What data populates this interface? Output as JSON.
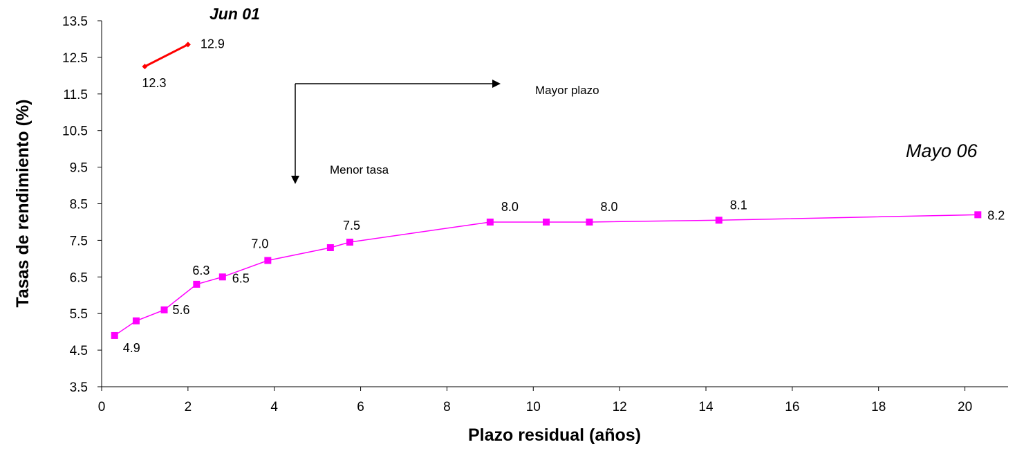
{
  "chart_data": {
    "type": "line",
    "xlabel": "Plazo residual (años)",
    "ylabel": "Tasas de rendimiento (%)",
    "xlim": [
      0,
      21
    ],
    "ylim": [
      3.5,
      13.5
    ],
    "x_ticks": [
      "0",
      "2",
      "4",
      "6",
      "8",
      "10",
      "12",
      "14",
      "16",
      "18",
      "20"
    ],
    "y_ticks": [
      "3.5",
      "4.5",
      "5.5",
      "6.5",
      "7.5",
      "8.5",
      "9.5",
      "10.5",
      "11.5",
      "12.5",
      "13.5"
    ],
    "grid": false,
    "series": [
      {
        "name": "Jun 01",
        "color": "#ff0000",
        "marker": "diamond",
        "points": [
          {
            "x": 1.0,
            "y": 12.25,
            "label": "12.3"
          },
          {
            "x": 2.0,
            "y": 12.85,
            "label": "12.9"
          }
        ]
      },
      {
        "name": "Mayo 06",
        "color": "#ff00ff",
        "marker": "square",
        "points": [
          {
            "x": 0.3,
            "y": 4.9,
            "label": "4.9"
          },
          {
            "x": 0.8,
            "y": 5.3,
            "label": ""
          },
          {
            "x": 1.45,
            "y": 5.6,
            "label": "5.6"
          },
          {
            "x": 2.2,
            "y": 6.3,
            "label": "6.3"
          },
          {
            "x": 2.8,
            "y": 6.5,
            "label": "6.5"
          },
          {
            "x": 3.85,
            "y": 6.95,
            "label": "7.0"
          },
          {
            "x": 5.3,
            "y": 7.3,
            "label": ""
          },
          {
            "x": 5.75,
            "y": 7.45,
            "label": "7.5"
          },
          {
            "x": 9.0,
            "y": 8.0,
            "label": "8.0"
          },
          {
            "x": 10.3,
            "y": 8.0,
            "label": ""
          },
          {
            "x": 11.3,
            "y": 8.0,
            "label": "8.0"
          },
          {
            "x": 14.3,
            "y": 8.05,
            "label": "8.1"
          },
          {
            "x": 20.3,
            "y": 8.2,
            "label": "8.2"
          }
        ]
      }
    ],
    "annotations": {
      "mayor_plazo": "Mayor plazo",
      "menor_tasa": "Menor tasa"
    }
  }
}
